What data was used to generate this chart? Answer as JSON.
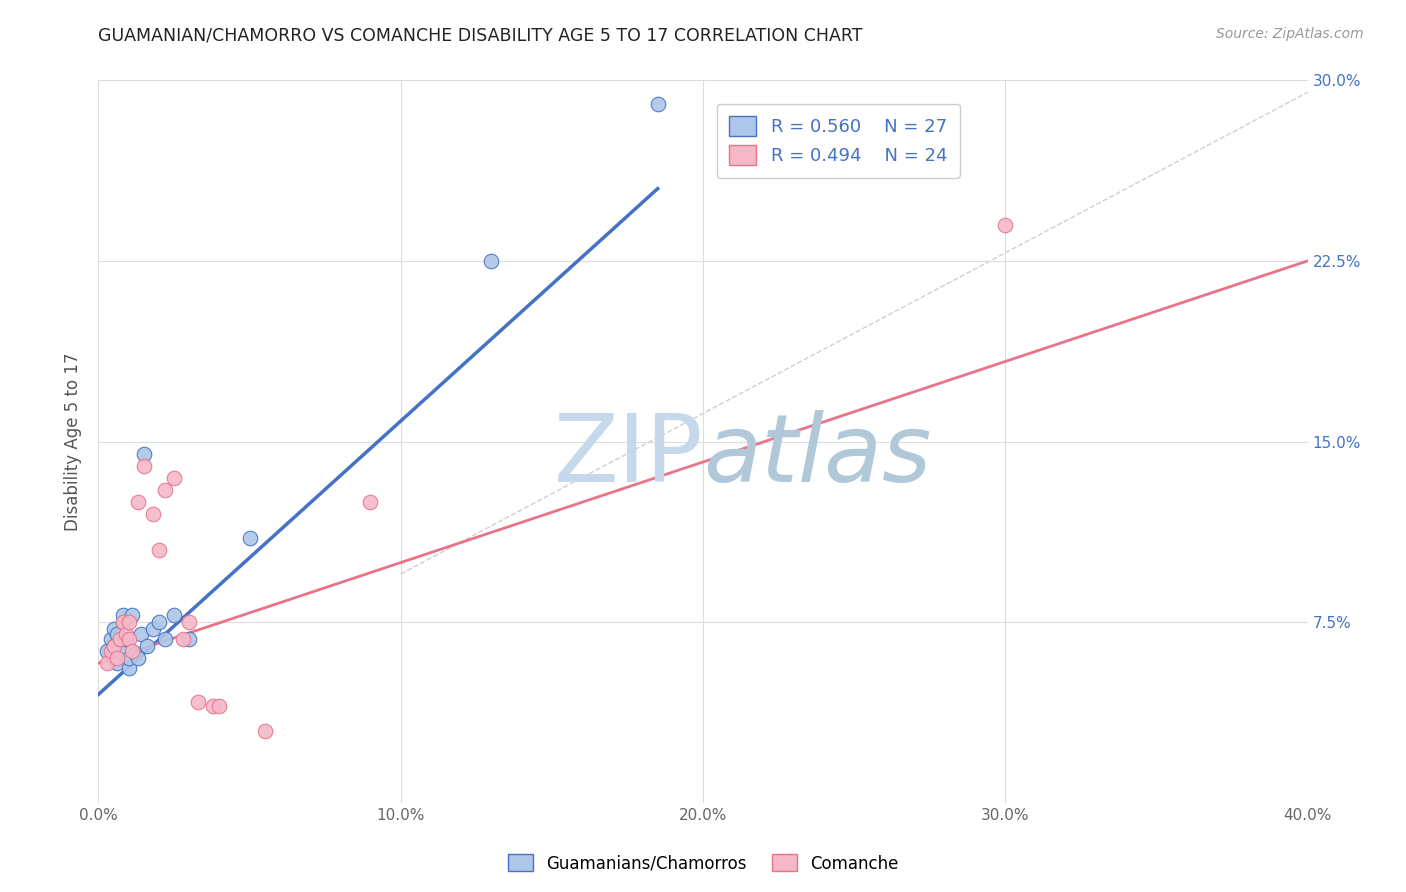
{
  "title": "GUAMANIAN/CHAMORRO VS COMANCHE DISABILITY AGE 5 TO 17 CORRELATION CHART",
  "source": "Source: ZipAtlas.com",
  "ylabel": "Disability Age 5 to 17",
  "xlim": [
    0.0,
    0.4
  ],
  "ylim": [
    0.0,
    0.3
  ],
  "xticks": [
    0.0,
    0.1,
    0.2,
    0.3,
    0.4
  ],
  "xticklabels": [
    "0.0%",
    "10.0%",
    "20.0%",
    "30.0%",
    "40.0%"
  ],
  "yticks": [
    0.0,
    0.075,
    0.15,
    0.225,
    0.3
  ],
  "yticklabels": [
    "",
    "7.5%",
    "15.0%",
    "22.5%",
    "30.0%"
  ],
  "blue_R": 0.56,
  "blue_N": 27,
  "pink_R": 0.494,
  "pink_N": 24,
  "blue_color": "#aec6e8",
  "pink_color": "#f5b8c8",
  "blue_line_color": "#4472c4",
  "pink_line_color": "#e8748a",
  "title_color": "#222222",
  "legend_R_color": "#4472c4",
  "legend_N_color": "#222222",
  "watermark_zip_color": "#c5d8ec",
  "watermark_atlas_color": "#b0c8d8",
  "grid_color": "#dddddd",
  "blue_points_x": [
    0.003,
    0.004,
    0.005,
    0.005,
    0.005,
    0.006,
    0.006,
    0.007,
    0.008,
    0.008,
    0.009,
    0.01,
    0.01,
    0.011,
    0.012,
    0.013,
    0.014,
    0.015,
    0.016,
    0.018,
    0.02,
    0.022,
    0.025,
    0.03,
    0.05,
    0.13,
    0.185
  ],
  "blue_points_y": [
    0.063,
    0.068,
    0.06,
    0.065,
    0.072,
    0.058,
    0.07,
    0.063,
    0.075,
    0.078,
    0.068,
    0.056,
    0.06,
    0.078,
    0.062,
    0.06,
    0.07,
    0.145,
    0.065,
    0.072,
    0.075,
    0.068,
    0.078,
    0.068,
    0.11,
    0.225,
    0.29
  ],
  "pink_points_x": [
    0.003,
    0.004,
    0.005,
    0.006,
    0.007,
    0.008,
    0.009,
    0.01,
    0.01,
    0.011,
    0.013,
    0.015,
    0.018,
    0.02,
    0.022,
    0.025,
    0.028,
    0.03,
    0.033,
    0.038,
    0.04,
    0.055,
    0.09,
    0.3
  ],
  "pink_points_y": [
    0.058,
    0.063,
    0.065,
    0.06,
    0.068,
    0.075,
    0.07,
    0.075,
    0.068,
    0.063,
    0.125,
    0.14,
    0.12,
    0.105,
    0.13,
    0.135,
    0.068,
    0.075,
    0.042,
    0.04,
    0.04,
    0.03,
    0.125,
    0.24
  ],
  "blue_trend_x": [
    0.0,
    0.185
  ],
  "blue_trend_y": [
    0.045,
    0.255
  ],
  "pink_trend_x": [
    0.0,
    0.4
  ],
  "pink_trend_y": [
    0.058,
    0.225
  ],
  "dashed_line_x": [
    0.1,
    0.4
  ],
  "dashed_line_y": [
    0.095,
    0.295
  ]
}
